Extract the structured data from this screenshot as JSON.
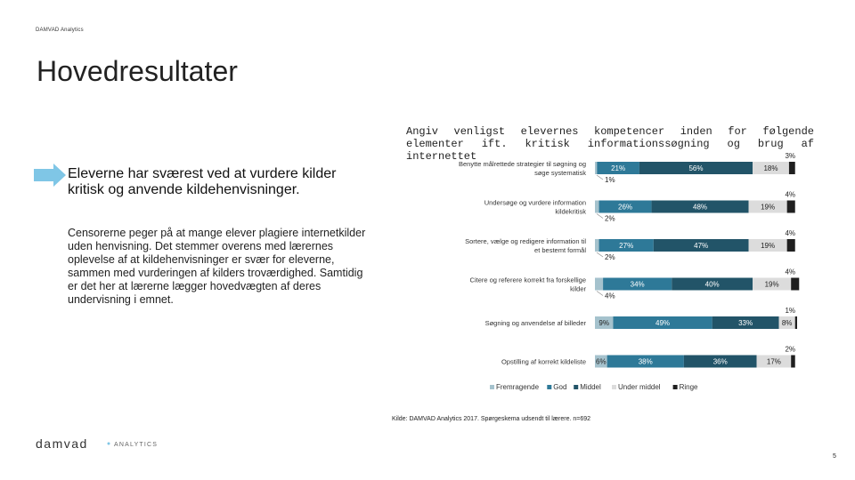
{
  "header": {
    "brand": "DAMVAD Analytics"
  },
  "slide": {
    "title": "Hovedresultater",
    "key_finding": "Eleverne har sværest ved at vurdere kilder kritisk og anvende kildehenvisninger.",
    "body": "Censorerne peger på at mange elever plagiere internetkilder uden henvisning. Det stemmer overens med lærernes oplevelse af at kildehenvisninger er svær for eleverne, sammen med vurderingen af kilders troværdighed. Samtidig er det her at lærerne lægger hovedvægten af deres undervisning i emnet."
  },
  "chart_title": "Angiv venligst elevernes kompetencer inden for følgende elementer ift. kritisk informationssøgning og brug af internettet",
  "chart_data": {
    "type": "bar",
    "orientation": "horizontal",
    "stacked": true,
    "categories": [
      "Benytte målrettede strategier til søgning og søge systematisk",
      "Undersøge og vurdere information kildekritisk",
      "Sortere, vælge og redigere information til et bestemt formål",
      "Citere og referere korrekt fra forskellige kilder",
      "Søgning og anvendelse af billeder",
      "Opstilling af korrekt kildeliste"
    ],
    "series": [
      {
        "name": "Fremragende",
        "color": "#a5c2cd",
        "values": [
          1,
          2,
          2,
          4,
          9,
          6
        ]
      },
      {
        "name": "God",
        "color": "#2e7998",
        "values": [
          21,
          26,
          27,
          34,
          49,
          38
        ]
      },
      {
        "name": "Middel",
        "color": "#225468",
        "values": [
          56,
          48,
          47,
          40,
          33,
          36
        ]
      },
      {
        "name": "Under middel",
        "color": "#dcdcdc",
        "values": [
          18,
          19,
          19,
          19,
          8,
          17
        ]
      },
      {
        "name": "Ringe",
        "color": "#1f1f1f",
        "values": [
          3,
          4,
          4,
          4,
          1,
          2
        ]
      }
    ],
    "data_labels": [
      [
        "1%",
        "21%",
        "56%",
        "18%",
        "3%"
      ],
      [
        "2%",
        "26%",
        "48%",
        "19%",
        "4%"
      ],
      [
        "2%",
        "27%",
        "47%",
        "19%",
        "4%"
      ],
      [
        "4%",
        "34%",
        "40%",
        "19%",
        "4%"
      ],
      [
        "9%",
        "49%",
        "33%",
        "8%",
        "1%"
      ],
      [
        "6%",
        "38%",
        "36%",
        "17%",
        "2%"
      ]
    ],
    "xlim": [
      0,
      100
    ],
    "legend": "bottom"
  },
  "source": "Kilde: DAMVAD Analytics 2017. Spørgeskema udsendt til lærere. n=692",
  "logo": {
    "name": "damvad",
    "tagline": "ANALYTICS"
  },
  "page_number": "5"
}
